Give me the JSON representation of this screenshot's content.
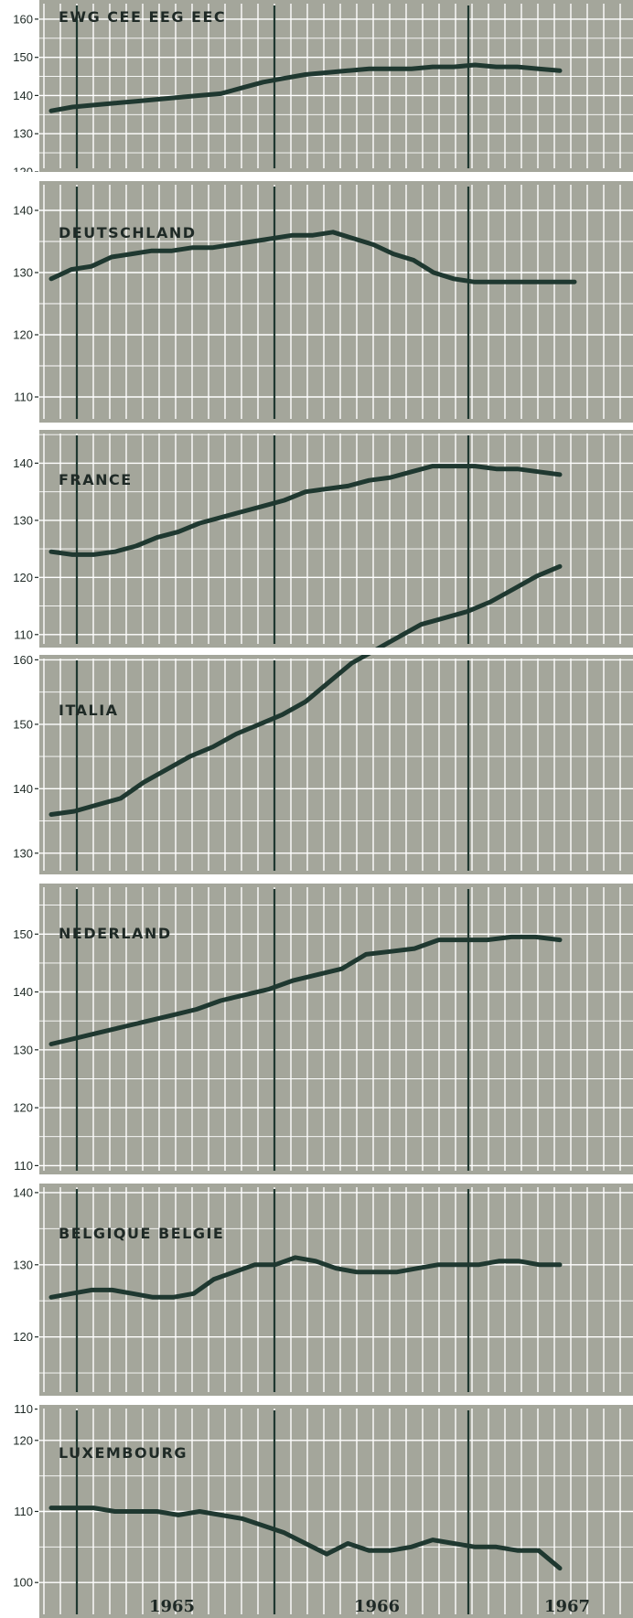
{
  "colors": {
    "panel_bg": "#a4a69b",
    "grid": "#ffffff",
    "series": "#1f3830",
    "text": "#1f2a26"
  },
  "chart_data": [
    {
      "type": "line",
      "title": "EWG CEE EEG EEC",
      "ylim": [
        120,
        165
      ],
      "yticks": [
        120,
        130,
        140,
        150,
        160
      ],
      "series": [
        {
          "values": [
            136,
            137,
            137.5,
            138,
            138.5,
            139,
            139.5,
            140,
            140.5,
            142,
            143.5,
            144.5,
            145.5,
            146,
            146.5,
            147,
            147,
            147,
            147.5,
            147.5,
            148,
            147.5,
            147.5,
            147,
            146.5
          ]
        }
      ]
    },
    {
      "type": "line",
      "title": "DEUTSCHLAND",
      "ylim": [
        105,
        150
      ],
      "yticks": [
        110,
        120,
        130,
        140
      ],
      "series": [
        {
          "values": [
            129,
            130.5,
            131,
            132.5,
            133,
            133.5,
            133.5,
            134,
            134,
            134.5,
            135,
            135.5,
            136,
            136,
            136.5,
            135.5,
            134.5,
            133,
            132,
            130,
            129,
            128.5,
            128.5,
            128.5,
            128.5,
            128.5,
            128.5
          ]
        }
      ]
    },
    {
      "type": "line",
      "title": "FRANCE",
      "ylim": [
        105,
        150
      ],
      "yticks": [
        110,
        120,
        130,
        140
      ],
      "series": [
        {
          "values": [
            124.5,
            124,
            124,
            124.5,
            125.5,
            127,
            128,
            129.5,
            130.5,
            131.5,
            132.5,
            133.5,
            135,
            135.5,
            136,
            137,
            137.5,
            138.5,
            139.5,
            139.5,
            139.5,
            139,
            139,
            138.5,
            138
          ]
        }
      ]
    },
    {
      "type": "line",
      "title": "ITALIA",
      "ylim": [
        125,
        170
      ],
      "yticks": [
        130,
        140,
        150,
        160
      ],
      "series": [
        {
          "values": [
            136,
            136.5,
            137.5,
            138.5,
            141,
            143,
            145,
            146.5,
            148.5,
            150,
            151.5,
            153.5,
            156.5,
            159.5,
            161.5,
            163.5,
            165.5,
            166.5,
            167.5,
            169,
            171,
            173,
            174.5
          ]
        }
      ]
    },
    {
      "type": "line",
      "title": "NEDERLAND",
      "ylim": [
        105,
        160
      ],
      "yticks": [
        110,
        120,
        130,
        140,
        150
      ],
      "series": [
        {
          "values": [
            131,
            132,
            133,
            134,
            135,
            136,
            137,
            138.5,
            139.5,
            140.5,
            142,
            143,
            144,
            146.5,
            147,
            147.5,
            149,
            149,
            149,
            149.5,
            149.5,
            149
          ]
        }
      ]
    },
    {
      "type": "line",
      "title": "BELGIQUE BELGIE",
      "ylim": [
        105,
        150
      ],
      "yticks": [
        110,
        120,
        130,
        140
      ],
      "series": [
        {
          "values": [
            125.5,
            126,
            126.5,
            126.5,
            126,
            125.5,
            125.5,
            126,
            128,
            129,
            130,
            130,
            131,
            130.5,
            129.5,
            129,
            129,
            129,
            129.5,
            130,
            130,
            130,
            130.5,
            130.5,
            130,
            130
          ]
        }
      ]
    },
    {
      "type": "line",
      "title": "LUXEMBOURG",
      "ylim": [
        95,
        125
      ],
      "yticks": [
        100,
        110,
        120
      ],
      "series": [
        {
          "values": [
            110.5,
            110.5,
            110.5,
            110,
            110,
            110,
            109.5,
            110,
            109.5,
            109,
            108,
            107,
            105.5,
            104,
            105.5,
            104.5,
            104.5,
            105,
            106,
            105.5,
            105,
            105,
            104.5,
            104.5,
            102
          ]
        }
      ]
    }
  ],
  "x_axis": {
    "tick_labels": [
      "1965",
      "1966",
      "1967"
    ]
  }
}
